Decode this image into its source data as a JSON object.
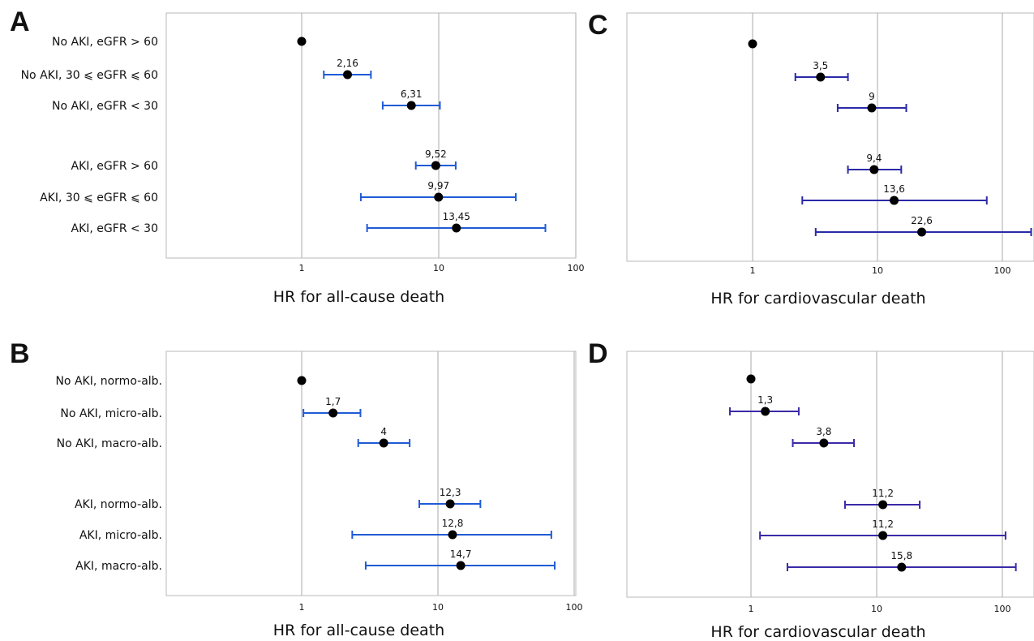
{
  "chart_data": [
    {
      "panel": "A",
      "type": "forest",
      "xlabel": "HR for all-cause death",
      "xscale": "log",
      "xticks": [
        "1",
        "10",
        "100"
      ],
      "xlim": [
        0.1,
        100
      ],
      "ci_color": "#1f5bd6",
      "rows": [
        {
          "label": "No AKI, eGFR > 60",
          "hr": 1,
          "lo": null,
          "hi": null,
          "value_label": ""
        },
        {
          "label": "No AKI, 30 ⩽ eGFR ⩽ 60",
          "hr": 2.16,
          "lo": 1.45,
          "hi": 3.2,
          "value_label": "2,16"
        },
        {
          "label": "No AKI, eGFR < 30",
          "hr": 6.31,
          "lo": 3.9,
          "hi": 10.2,
          "value_label": "6,31"
        },
        {
          "label": "AKI, eGFR > 60",
          "hr": 9.52,
          "lo": 6.8,
          "hi": 13.3,
          "value_label": "9,52"
        },
        {
          "label": "AKI, 30 ⩽ eGFR ⩽ 60",
          "hr": 9.97,
          "lo": 2.7,
          "hi": 36.5,
          "value_label": "9,97"
        },
        {
          "label": "AKI, eGFR < 30",
          "hr": 13.45,
          "lo": 3.0,
          "hi": 60.0,
          "value_label": "13,45"
        }
      ]
    },
    {
      "panel": "B",
      "type": "forest",
      "xlabel": "HR for all-cause death",
      "xscale": "log",
      "xticks": [
        "1",
        "10",
        "100"
      ],
      "xlim": [
        0.1,
        100
      ],
      "ci_color": "#1f5bd6",
      "rows": [
        {
          "label": "No AKI, normo-alb.",
          "hr": 1,
          "lo": null,
          "hi": null,
          "value_label": ""
        },
        {
          "label": "No AKI, micro-alb.",
          "hr": 1.7,
          "lo": 1.03,
          "hi": 2.7,
          "value_label": "1,7"
        },
        {
          "label": "No AKI, macro-alb.",
          "hr": 4,
          "lo": 2.6,
          "hi": 6.2,
          "value_label": "4"
        },
        {
          "label": "AKI, normo-alb.",
          "hr": 12.3,
          "lo": 7.3,
          "hi": 20.5,
          "value_label": "12,3"
        },
        {
          "label": "AKI, micro-alb.",
          "hr": 12.8,
          "lo": 2.35,
          "hi": 68.0,
          "value_label": "12,8"
        },
        {
          "label": "AKI, macro-alb.",
          "hr": 14.7,
          "lo": 2.95,
          "hi": 72.0,
          "value_label": "14,7"
        }
      ]
    },
    {
      "panel": "C",
      "type": "forest",
      "xlabel": "HR for cardiovascular death",
      "xscale": "log",
      "xticks": [
        "1",
        "10",
        "100"
      ],
      "xlim": [
        0.1,
        180
      ],
      "ci_color": "#2a2aa8",
      "rows": [
        {
          "label": "",
          "hr": 1,
          "lo": null,
          "hi": null,
          "value_label": ""
        },
        {
          "label": "",
          "hr": 3.5,
          "lo": 2.2,
          "hi": 5.8,
          "value_label": "3,5"
        },
        {
          "label": "",
          "hr": 9,
          "lo": 4.8,
          "hi": 17.0,
          "value_label": "9"
        },
        {
          "label": "",
          "hr": 9.4,
          "lo": 5.8,
          "hi": 15.5,
          "value_label": "9,4"
        },
        {
          "label": "",
          "hr": 13.6,
          "lo": 2.5,
          "hi": 75.0,
          "value_label": "13,6"
        },
        {
          "label": "",
          "hr": 22.6,
          "lo": 3.2,
          "hi": 170.0,
          "value_label": "22,6"
        }
      ]
    },
    {
      "panel": "D",
      "type": "forest",
      "xlabel": "HR for cardiovascular death",
      "xscale": "log",
      "xticks": [
        "1",
        "10",
        "100"
      ],
      "xlim": [
        0.1,
        180
      ],
      "ci_color": "#3a2aa8",
      "rows": [
        {
          "label": "",
          "hr": 1,
          "lo": null,
          "hi": null,
          "value_label": ""
        },
        {
          "label": "",
          "hr": 1.3,
          "lo": 0.68,
          "hi": 2.4,
          "value_label": "1,3"
        },
        {
          "label": "",
          "hr": 3.8,
          "lo": 2.15,
          "hi": 6.6,
          "value_label": "3,8"
        },
        {
          "label": "",
          "hr": 11.2,
          "lo": 5.6,
          "hi": 22.0,
          "value_label": "11,2"
        },
        {
          "label": "",
          "hr": 11.2,
          "lo": 1.18,
          "hi": 106.0,
          "value_label": "11,2"
        },
        {
          "label": "",
          "hr": 15.8,
          "lo": 1.95,
          "hi": 128.0,
          "value_label": "15,8"
        }
      ]
    }
  ]
}
